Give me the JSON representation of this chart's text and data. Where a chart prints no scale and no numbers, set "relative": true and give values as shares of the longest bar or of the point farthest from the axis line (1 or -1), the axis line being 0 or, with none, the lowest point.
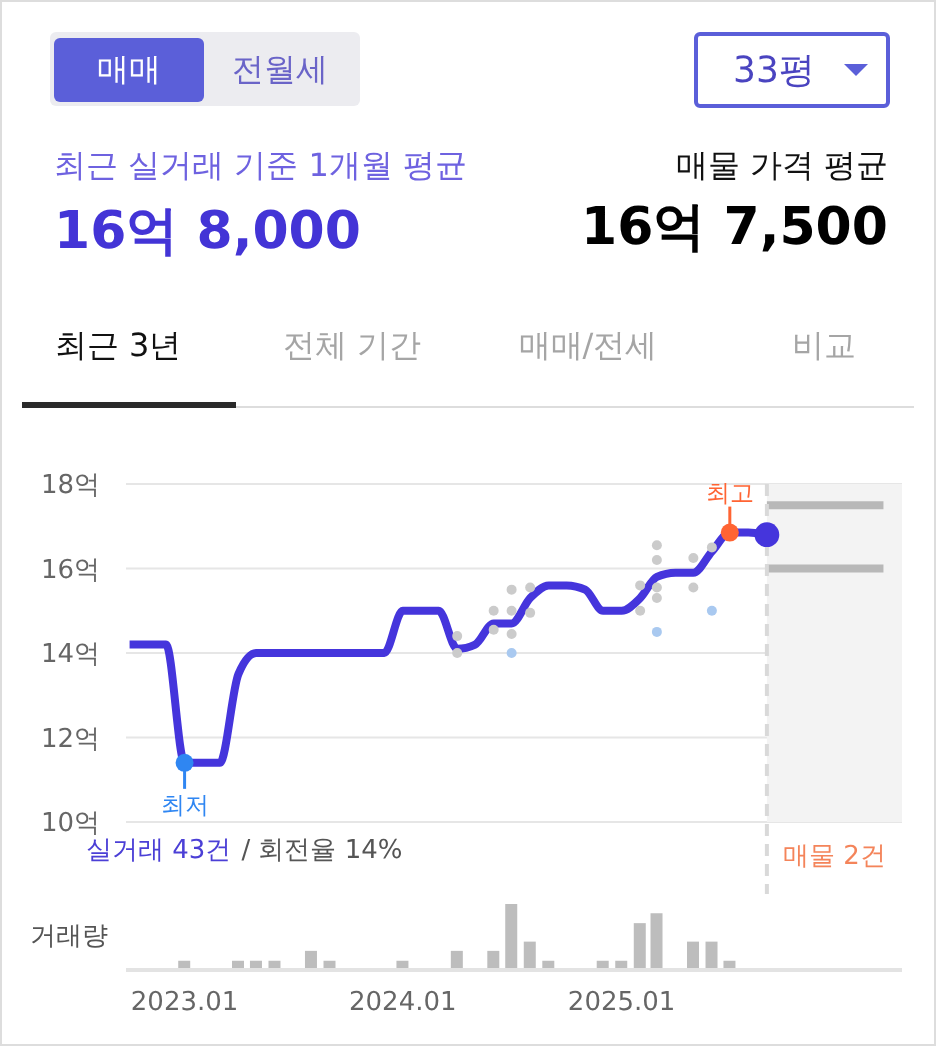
{
  "chart_data": [
    {
      "type": "other",
      "annotations": [
        "매매",
        "전월세",
        "33평",
        "최근 실거래 기준 1개월 평균",
        "16억 8,000",
        "매물 가격 평균",
        "16억 7,500",
        "최근 3년",
        "전체 기간",
        "매매/전세",
        "비교"
      ]
    },
    {
      "type": "line",
      "xlim": [
        "2022-09-25",
        "2026-04-15"
      ],
      "ylim": [
        10,
        18
      ],
      "yticks": [
        {
          "value": 10,
          "label": "10억"
        },
        {
          "value": 12,
          "label": "12억"
        },
        {
          "value": 14,
          "label": "14억"
        },
        {
          "value": 16,
          "label": "16억"
        },
        {
          "value": 18,
          "label": "18억"
        }
      ],
      "grid": "y",
      "tick_labels": "y",
      "bands": [
        {
          "axis": "x",
          "from": "2025-09",
          "to": "2026-04-15",
          "label": "매물 2건",
          "color": "#f3f3f3"
        }
      ],
      "ref_lines": [
        {
          "axis": "x",
          "value": "2025-09",
          "color": "#d9d9d9",
          "line_style": "dashed"
        }
      ],
      "series": [
        {
          "type": "scatter",
          "color": "#cbcbcb",
          "marker": "circle",
          "x": [
            "2024-04",
            "2024-04",
            "2024-06",
            "2024-06",
            "2024-07",
            "2024-07",
            "2024-07",
            "2024-08",
            "2024-08",
            "2025-02",
            "2025-02",
            "2025-03",
            "2025-03",
            "2025-03",
            "2025-03",
            "2025-05",
            "2025-05",
            "2025-06"
          ],
          "values": [
            14.4,
            14.0,
            15.0,
            14.55,
            15.5,
            15.0,
            14.45,
            15.55,
            14.95,
            15.6,
            15.0,
            16.55,
            16.2,
            15.55,
            15.3,
            16.25,
            15.55,
            16.5
          ]
        },
        {
          "type": "scatter",
          "color": "#a9c9f0",
          "marker": "circle",
          "x": [
            "2024-07",
            "2025-03",
            "2025-06"
          ],
          "values": [
            14.0,
            14.5,
            15.0
          ]
        },
        {
          "type": "line",
          "color": "#4535dc",
          "x": [
            "2022-10",
            "2022-11",
            "2022-12",
            "2023-01",
            "2023-02",
            "2023-03",
            "2023-04",
            "2023-05",
            "2023-06",
            "2023-07",
            "2023-08",
            "2023-09",
            "2023-10",
            "2023-11",
            "2023-12",
            "2024-01",
            "2024-02",
            "2024-03",
            "2024-04",
            "2024-05",
            "2024-06",
            "2024-07",
            "2024-08",
            "2024-09",
            "2024-10",
            "2024-11",
            "2024-12",
            "2025-01",
            "2025-02",
            "2025-03",
            "2025-04",
            "2025-05",
            "2025-06",
            "2025-07",
            "2025-08",
            "2025-09"
          ],
          "values": [
            14.2,
            14.2,
            14.2,
            11.4,
            11.4,
            11.4,
            13.5,
            14.0,
            14.0,
            14.0,
            14.0,
            14.0,
            14.0,
            14.0,
            14.0,
            15.0,
            15.0,
            15.0,
            14.1,
            14.2,
            14.7,
            14.7,
            15.3,
            15.6,
            15.6,
            15.5,
            15.0,
            15.0,
            15.3,
            15.8,
            15.9,
            15.9,
            16.4,
            16.85,
            16.85,
            16.8
          ]
        },
        {
          "type": "line",
          "color": "#b8b8b8",
          "x": [
            "2025-09",
            "2026-03-15"
          ],
          "values": [
            17.5,
            17.5
          ]
        },
        {
          "type": "line",
          "color": "#b8b8b8",
          "x": [
            "2025-09",
            "2026-03-15"
          ],
          "values": [
            16.0,
            16.0
          ]
        },
        {
          "type": "scatter",
          "color": "#4535dc",
          "marker": "circle",
          "x": [
            "2025-09"
          ],
          "values": [
            16.8
          ]
        }
      ],
      "annotations": [
        {
          "text": "최저",
          "x": "2023-01",
          "y": 11.4
        },
        {
          "text": "최고",
          "x": "2025-07",
          "y": 16.85
        },
        "실거래 43건",
        "/ 회전율 14%"
      ]
    },
    {
      "type": "bar",
      "relative": true,
      "ylabel": "거래량",
      "color": "#bdbdbd",
      "xlim": [
        "2022-09-25",
        "2026-04-15"
      ],
      "xticks": [
        {
          "value": "2023-01",
          "label": "2023.01"
        },
        {
          "value": "2024-01",
          "label": "2024.01"
        },
        {
          "value": "2025-01",
          "label": "2025.01"
        }
      ],
      "tick_labels": "x",
      "x": [
        "2023-01",
        "2023-04",
        "2023-05",
        "2023-06",
        "2023-08",
        "2023-09",
        "2024-01",
        "2024-04",
        "2024-06",
        "2024-07",
        "2024-08",
        "2024-09",
        "2024-12",
        "2025-01",
        "2025-02",
        "2025-03",
        "2025-05",
        "2025-06",
        "2025-07"
      ],
      "values": [
        0.14,
        0.14,
        0.14,
        0.14,
        0.29,
        0.14,
        0.14,
        0.29,
        0.29,
        1,
        0.43,
        0.14,
        0.14,
        0.14,
        0.71,
        0.86,
        0.43,
        0.43,
        0.14
      ]
    }
  ]
}
